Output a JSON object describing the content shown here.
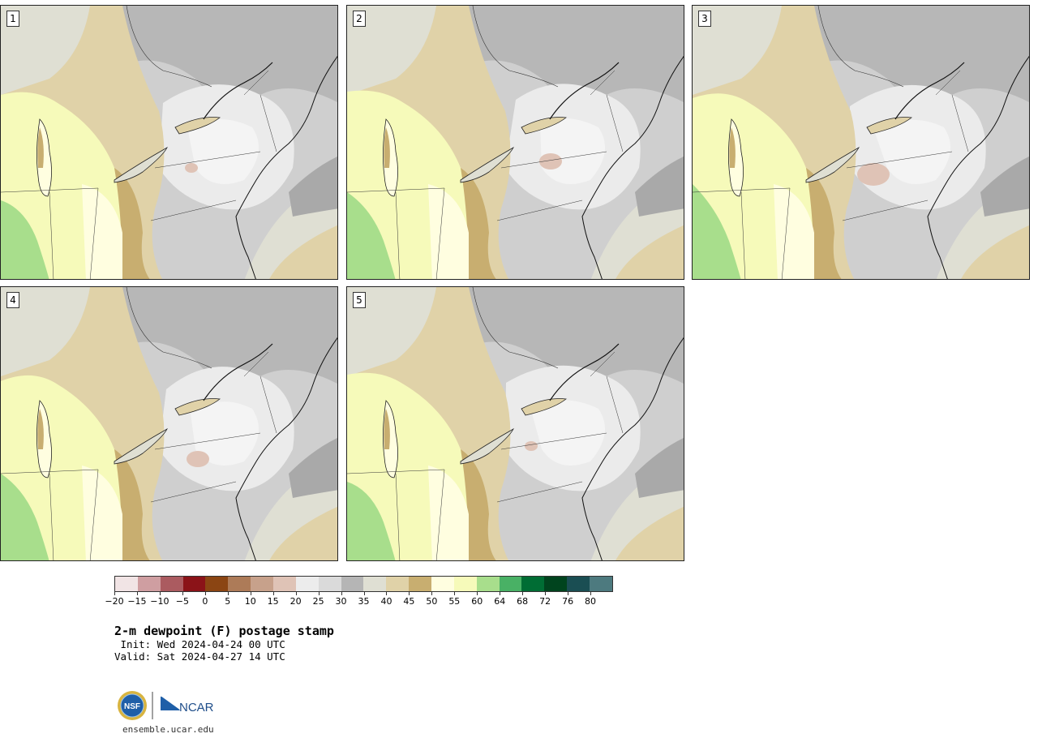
{
  "panels": [
    {
      "label": "1"
    },
    {
      "label": "2"
    },
    {
      "label": "3"
    },
    {
      "label": "4"
    },
    {
      "label": "5"
    }
  ],
  "colorbar": {
    "colors": [
      "#f1e4e5",
      "#cf9ea1",
      "#ab5b60",
      "#8b1318",
      "#8b4513",
      "#ad7b58",
      "#c7a18b",
      "#dfc3b6",
      "#ececec",
      "#dadada",
      "#b5b5b5",
      "#dfdfd3",
      "#e0d2a8",
      "#c8ae70",
      "#fffee0",
      "#f6faba",
      "#a8de8c",
      "#49b165",
      "#006d34",
      "#00441e",
      "#1a4e53",
      "#4d7a7f"
    ],
    "tick_labels": [
      "−20",
      "−15",
      "−10",
      "−5",
      "0",
      "5",
      "10",
      "15",
      "20",
      "25",
      "30",
      "35",
      "40",
      "45",
      "50",
      "55",
      "60",
      "64",
      "68",
      "72",
      "76",
      "80"
    ]
  },
  "title": "2-m dewpoint (F) postage stamp",
  "init_line": " Init: Wed 2024-04-24 00 UTC",
  "valid_line": "Valid: Sat 2024-04-27 14 UTC",
  "logos": {
    "nsf": "NSF",
    "ncar": "NCAR"
  },
  "website": "ensemble.ucar.edu"
}
